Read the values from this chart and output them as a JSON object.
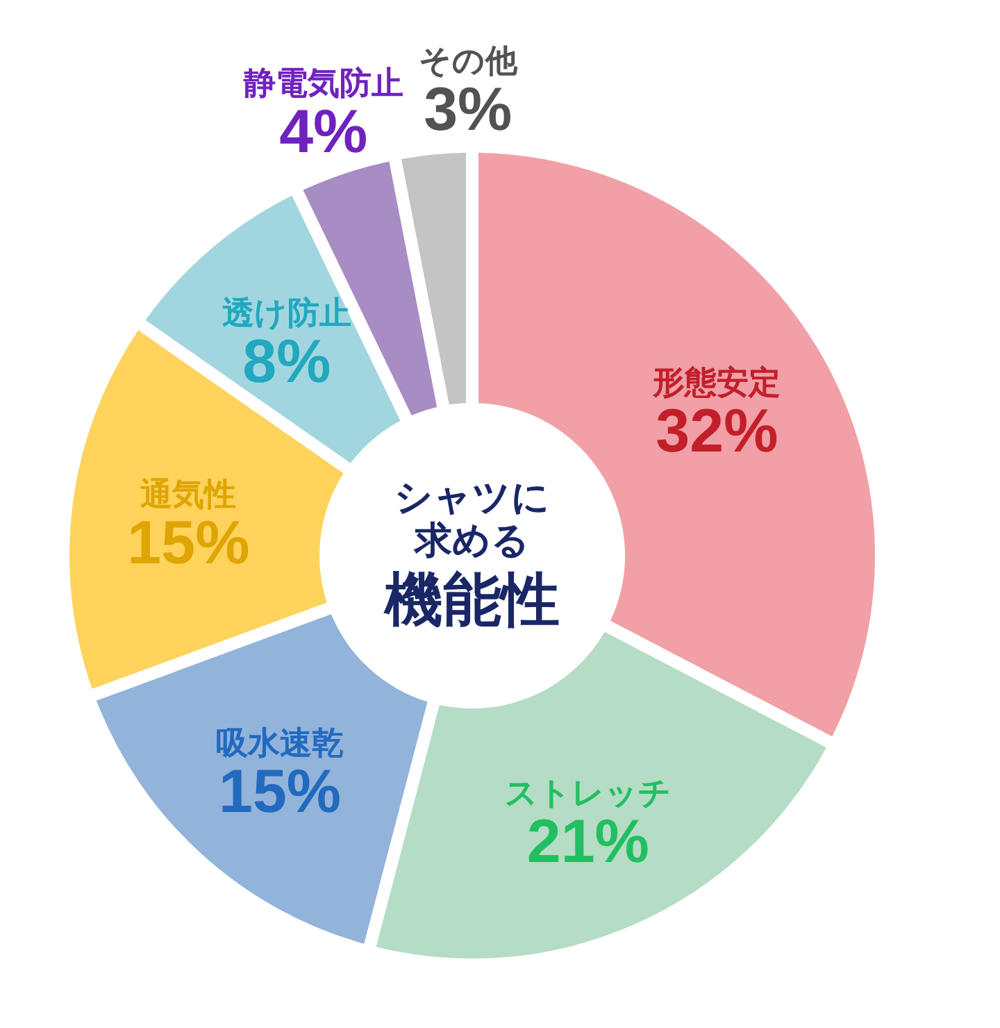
{
  "chart_data": {
    "type": "donut",
    "title": "シャツに求める",
    "subtitle": "機能性",
    "categories": [
      "形態安定",
      "ストレッチ",
      "吸水速乾",
      "通気性",
      "透け防止",
      "静電気防止",
      "その他"
    ],
    "values": [
      32,
      21,
      15,
      15,
      8,
      4,
      3
    ],
    "colors": [
      "#f0a0a6",
      "#b5dcc5",
      "#92b3da",
      "#fdd35c",
      "#a2d6df",
      "#a88cc4",
      "#c4c4c4"
    ],
    "value_labels": [
      "32%",
      "21%",
      "15%",
      "15%",
      "8%",
      "4%",
      "3%"
    ]
  }
}
